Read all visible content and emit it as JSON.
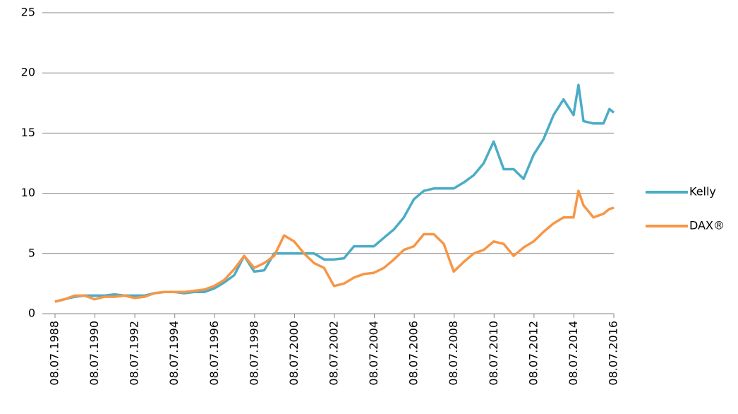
{
  "chart_data": {
    "type": "line",
    "x": [
      1988.52,
      1989,
      1989.5,
      1990,
      1990.5,
      1991,
      1991.5,
      1992,
      1992.5,
      1993,
      1993.5,
      1994,
      1994.5,
      1995,
      1995.5,
      1996,
      1996.5,
      1997,
      1997.5,
      1998,
      1998.5,
      1999,
      1999.5,
      2000,
      2000.5,
      2001,
      2001.5,
      2002,
      2002.5,
      2003,
      2003.5,
      2004,
      2004.5,
      2005,
      2005.5,
      2006,
      2006.5,
      2007,
      2007.5,
      2008,
      2008.5,
      2009,
      2009.5,
      2010,
      2010.5,
      2011,
      2011.5,
      2012,
      2012.5,
      2013,
      2013.5,
      2014,
      2014.5,
      2014.75,
      2015,
      2015.5,
      2016,
      2016.3,
      2016.52
    ],
    "series": [
      {
        "name": "Kelly",
        "color": "#4bacc6",
        "values": [
          1.0,
          1.2,
          1.4,
          1.5,
          1.5,
          1.5,
          1.6,
          1.5,
          1.5,
          1.5,
          1.7,
          1.8,
          1.8,
          1.7,
          1.8,
          1.8,
          2.1,
          2.6,
          3.2,
          4.8,
          3.5,
          3.6,
          5.0,
          5.0,
          5.0,
          5.0,
          5.0,
          4.5,
          4.5,
          4.6,
          5.6,
          5.6,
          5.6,
          6.3,
          7.0,
          8.0,
          9.5,
          10.2,
          10.4,
          10.4,
          10.4,
          10.9,
          11.5,
          12.5,
          14.3,
          12.0,
          12.0,
          11.2,
          13.2,
          14.5,
          16.5,
          17.8,
          16.5,
          19.0,
          16.0,
          15.8,
          15.8,
          17.0,
          16.7
        ]
      },
      {
        "name": "DAX®",
        "color": "#f79646",
        "values": [
          1.0,
          1.2,
          1.5,
          1.5,
          1.2,
          1.4,
          1.4,
          1.5,
          1.3,
          1.4,
          1.7,
          1.8,
          1.8,
          1.8,
          1.9,
          2.0,
          2.3,
          2.8,
          3.7,
          4.8,
          3.8,
          4.2,
          4.8,
          6.5,
          6.0,
          5.0,
          4.2,
          3.8,
          2.3,
          2.5,
          3.0,
          3.3,
          3.4,
          3.8,
          4.5,
          5.3,
          5.6,
          6.6,
          6.6,
          5.8,
          3.5,
          4.3,
          5.0,
          5.3,
          6.0,
          5.8,
          4.8,
          5.5,
          6.0,
          6.8,
          7.5,
          8.0,
          8.0,
          10.2,
          9.0,
          8.0,
          8.3,
          8.7,
          8.8
        ]
      }
    ],
    "xlim": [
      1988.52,
      2016.52
    ],
    "xticks": [
      {
        "value": 1988.52,
        "label": "08.07.1988"
      },
      {
        "value": 1990.52,
        "label": "08.07.1990"
      },
      {
        "value": 1992.52,
        "label": "08.07.1992"
      },
      {
        "value": 1994.52,
        "label": "08.07.1994"
      },
      {
        "value": 1996.52,
        "label": "08.07.1996"
      },
      {
        "value": 1998.52,
        "label": "08.07.1998"
      },
      {
        "value": 2000.52,
        "label": "08.07.2000"
      },
      {
        "value": 2002.52,
        "label": "08.07.2002"
      },
      {
        "value": 2004.52,
        "label": "08.07.2004"
      },
      {
        "value": 2006.52,
        "label": "08.07.2006"
      },
      {
        "value": 2008.52,
        "label": "08.07.2008"
      },
      {
        "value": 2010.52,
        "label": "08.07.2010"
      },
      {
        "value": 2012.52,
        "label": "08.07.2012"
      },
      {
        "value": 2014.52,
        "label": "08.07.2014"
      },
      {
        "value": 2016.52,
        "label": "08.07.2016"
      }
    ],
    "ylim": [
      0,
      25
    ],
    "yticks": [
      0,
      5,
      10,
      15,
      20,
      25
    ],
    "grid": true,
    "legend": "right"
  }
}
